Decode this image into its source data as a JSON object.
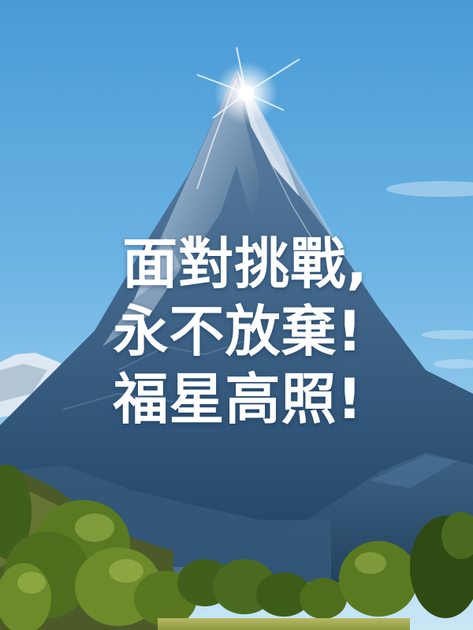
{
  "caption": {
    "line1": "面對挑戰,",
    "line2": "永不放棄!",
    "line3": "福星高照!"
  },
  "colors": {
    "sky_top": "#5fa9de",
    "sky_bottom": "#bfe0f3",
    "mountain_dark": "#2e5d82",
    "snow": "#e9f2fa",
    "forest": "#4a6b1f",
    "text": "#ffffff"
  }
}
